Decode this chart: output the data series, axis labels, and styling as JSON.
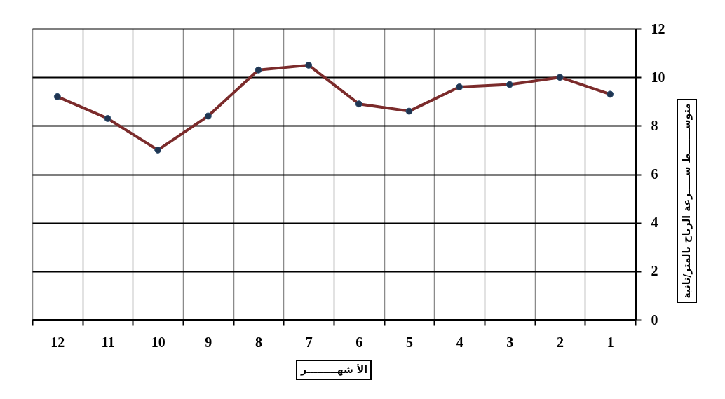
{
  "chart_data": {
    "type": "line",
    "xlabel": "الأ شهـــــــــر",
    "ylabel": "متوســـــــط ســـــرعة الرياح  بالمتر/ثانية",
    "categories": [
      "12",
      "11",
      "10",
      "9",
      "8",
      "7",
      "6",
      "5",
      "4",
      "3",
      "2",
      "1"
    ],
    "series": [
      {
        "color": "#7b2b2b",
        "values": [
          9.2,
          8.3,
          7.0,
          8.4,
          10.3,
          10.5,
          8.9,
          8.6,
          9.6,
          9.7,
          10.0,
          9.3
        ]
      }
    ],
    "ylim": [
      0,
      12
    ],
    "yticks": [
      0,
      2,
      4,
      6,
      8,
      10,
      12
    ],
    "grid": true,
    "marker": "circle",
    "line_style": "solid"
  }
}
